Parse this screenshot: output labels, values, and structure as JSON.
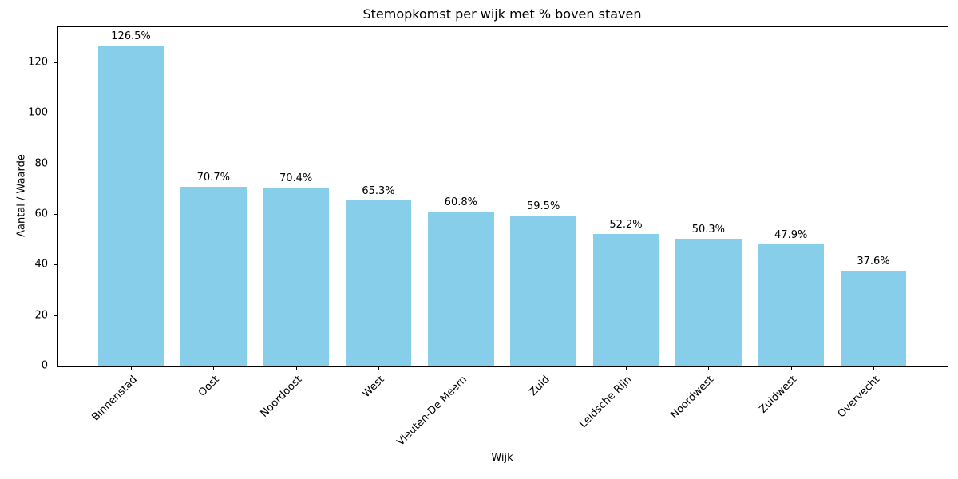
{
  "chart_data": {
    "type": "bar",
    "title": "Stemopkomst per wijk met % boven staven",
    "xlabel": "Wijk",
    "ylabel": "Aantal / Waarde",
    "categories": [
      "Binnenstad",
      "Oost",
      "Noordoost",
      "West",
      "Vleuten-De Meern",
      "Zuid",
      "Leidsche Rijn",
      "Noordwest",
      "Zuidwest",
      "Overvecht"
    ],
    "values": [
      126.5,
      70.7,
      70.4,
      65.3,
      60.8,
      59.5,
      52.2,
      50.3,
      47.9,
      37.6
    ],
    "bar_labels": [
      "126.5%",
      "70.7%",
      "70.4%",
      "65.3%",
      "60.8%",
      "59.5%",
      "52.2%",
      "50.3%",
      "47.9%",
      "37.6%"
    ],
    "yticks": [
      0,
      20,
      40,
      60,
      80,
      100,
      120
    ],
    "ylim": [
      0,
      134.2
    ],
    "bar_color": "#87CEEB",
    "grid": false,
    "legend": null
  }
}
